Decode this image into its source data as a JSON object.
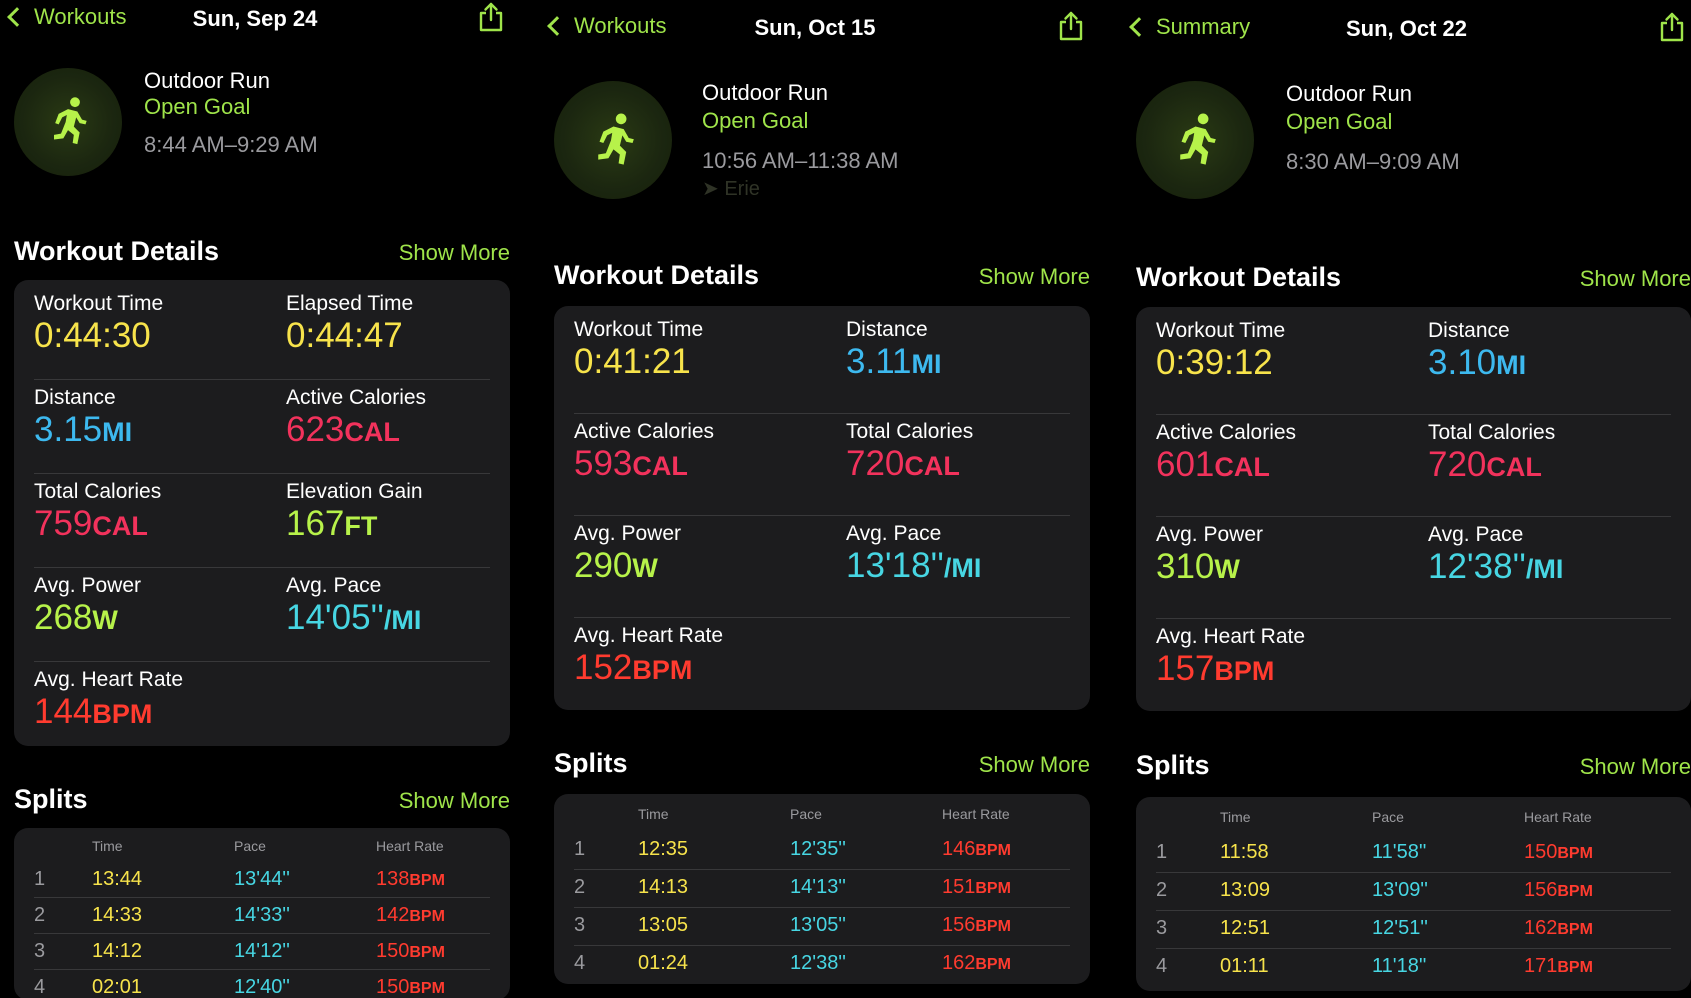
{
  "panels": [
    {
      "nav": {
        "back_label": "Workouts",
        "title": "Sun, Sep 24"
      },
      "workout": {
        "type": "Outdoor Run",
        "goal": "Open Goal",
        "time_range": "8:44 AM–9:29 AM",
        "location": ""
      },
      "details": {
        "title": "Workout Details",
        "show_more": "Show More",
        "metrics": [
          {
            "label": "Workout Time",
            "value": "0:44:30",
            "unit": "",
            "color": "yellow"
          },
          {
            "label": "Elapsed Time",
            "value": "0:44:47",
            "unit": "",
            "color": "yellow"
          },
          {
            "label": "Distance",
            "value": "3.15",
            "unit": "MI",
            "color": "blue"
          },
          {
            "label": "Active Calories",
            "value": "623",
            "unit": "CAL",
            "color": "red"
          },
          {
            "label": "Total Calories",
            "value": "759",
            "unit": "CAL",
            "color": "red"
          },
          {
            "label": "Elevation Gain",
            "value": "167",
            "unit": "FT",
            "color": "green"
          },
          {
            "label": "Avg. Power",
            "value": "268",
            "unit": "W",
            "color": "green"
          },
          {
            "label": "Avg. Pace",
            "value": "14'05''",
            "unit": "/MI",
            "color": "cyan"
          },
          {
            "label": "Avg. Heart Rate",
            "value": "144",
            "unit": "BPM",
            "color": "hr"
          }
        ]
      },
      "splits": {
        "title": "Splits",
        "show_more": "Show More",
        "headers": {
          "time": "Time",
          "pace": "Pace",
          "hr": "Heart Rate"
        },
        "rows": [
          {
            "idx": "1",
            "time": "13:44",
            "pace": "13'44''",
            "hr": "138",
            "hr_unit": "BPM"
          },
          {
            "idx": "2",
            "time": "14:33",
            "pace": "14'33''",
            "hr": "142",
            "hr_unit": "BPM"
          },
          {
            "idx": "3",
            "time": "14:12",
            "pace": "14'12''",
            "hr": "150",
            "hr_unit": "BPM"
          },
          {
            "idx": "4",
            "time": "02:01",
            "pace": "12'40''",
            "hr": "150",
            "hr_unit": "BPM"
          }
        ]
      }
    },
    {
      "nav": {
        "back_label": "Workouts",
        "title": "Sun, Oct 15"
      },
      "workout": {
        "type": "Outdoor Run",
        "goal": "Open Goal",
        "time_range": "10:56 AM–11:38 AM",
        "location": "Erie"
      },
      "details": {
        "title": "Workout Details",
        "show_more": "Show More",
        "metrics": [
          {
            "label": "Workout Time",
            "value": "0:41:21",
            "unit": "",
            "color": "yellow"
          },
          {
            "label": "Distance",
            "value": "3.11",
            "unit": "MI",
            "color": "blue"
          },
          {
            "label": "Active Calories",
            "value": "593",
            "unit": "CAL",
            "color": "red"
          },
          {
            "label": "Total Calories",
            "value": "720",
            "unit": "CAL",
            "color": "red"
          },
          {
            "label": "Avg. Power",
            "value": "290",
            "unit": "W",
            "color": "green"
          },
          {
            "label": "Avg. Pace",
            "value": "13'18''",
            "unit": "/MI",
            "color": "cyan"
          },
          {
            "label": "Avg. Heart Rate",
            "value": "152",
            "unit": "BPM",
            "color": "hr"
          }
        ]
      },
      "splits": {
        "title": "Splits",
        "show_more": "Show More",
        "headers": {
          "time": "Time",
          "pace": "Pace",
          "hr": "Heart Rate"
        },
        "rows": [
          {
            "idx": "1",
            "time": "12:35",
            "pace": "12'35''",
            "hr": "146",
            "hr_unit": "BPM"
          },
          {
            "idx": "2",
            "time": "14:13",
            "pace": "14'13''",
            "hr": "151",
            "hr_unit": "BPM"
          },
          {
            "idx": "3",
            "time": "13:05",
            "pace": "13'05''",
            "hr": "156",
            "hr_unit": "BPM"
          },
          {
            "idx": "4",
            "time": "01:24",
            "pace": "12'38''",
            "hr": "162",
            "hr_unit": "BPM"
          }
        ]
      }
    },
    {
      "nav": {
        "back_label": "Summary",
        "title": "Sun, Oct 22"
      },
      "workout": {
        "type": "Outdoor Run",
        "goal": "Open Goal",
        "time_range": "8:30 AM–9:09 AM",
        "location": ""
      },
      "details": {
        "title": "Workout Details",
        "show_more": "Show More",
        "metrics": [
          {
            "label": "Workout Time",
            "value": "0:39:12",
            "unit": "",
            "color": "yellow"
          },
          {
            "label": "Distance",
            "value": "3.10",
            "unit": "MI",
            "color": "blue"
          },
          {
            "label": "Active Calories",
            "value": "601",
            "unit": "CAL",
            "color": "red"
          },
          {
            "label": "Total Calories",
            "value": "720",
            "unit": "CAL",
            "color": "red"
          },
          {
            "label": "Avg. Power",
            "value": "310",
            "unit": "W",
            "color": "green"
          },
          {
            "label": "Avg. Pace",
            "value": "12'38''",
            "unit": "/MI",
            "color": "cyan"
          },
          {
            "label": "Avg. Heart Rate",
            "value": "157",
            "unit": "BPM",
            "color": "hr"
          }
        ]
      },
      "splits": {
        "title": "Splits",
        "show_more": "Show More",
        "headers": {
          "time": "Time",
          "pace": "Pace",
          "hr": "Heart Rate"
        },
        "rows": [
          {
            "idx": "1",
            "time": "11:58",
            "pace": "11'58''",
            "hr": "150",
            "hr_unit": "BPM"
          },
          {
            "idx": "2",
            "time": "13:09",
            "pace": "13'09''",
            "hr": "156",
            "hr_unit": "BPM"
          },
          {
            "idx": "3",
            "time": "12:51",
            "pace": "12'51''",
            "hr": "162",
            "hr_unit": "BPM"
          },
          {
            "idx": "4",
            "time": "01:11",
            "pace": "11'18''",
            "hr": "171",
            "hr_unit": "BPM"
          }
        ]
      }
    }
  ]
}
